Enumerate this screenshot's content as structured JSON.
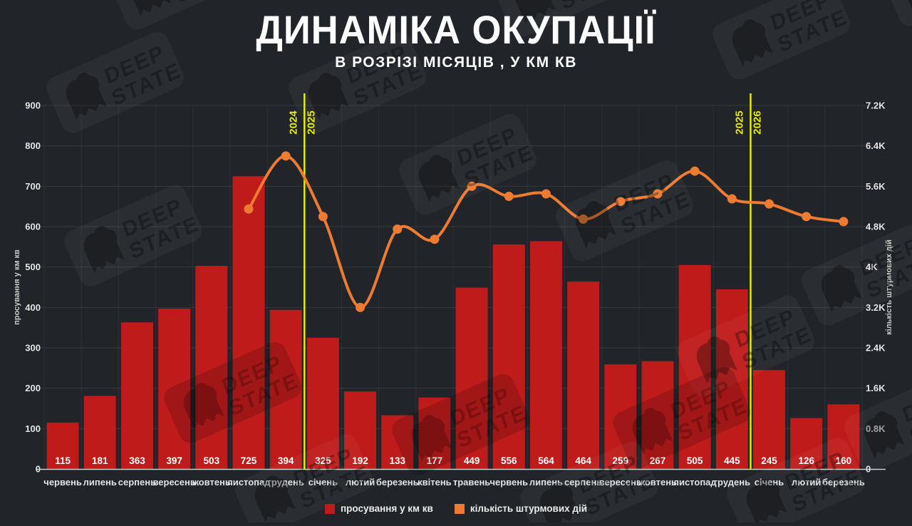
{
  "header": {
    "title": "ДИНАМІКА ОКУПАЦІЇ",
    "subtitle": "В РОЗРІЗІ МІСЯЦІВ , У КМ КВ"
  },
  "watermark": {
    "line1": "DEEP",
    "line2": "STATE"
  },
  "colors": {
    "background": "#212429",
    "bar": "#c01b1b",
    "line": "#ee7b32",
    "year_line": "#e4eb00",
    "axis_text": "#e3e3e3",
    "value_text": "#ffffff",
    "baseline": "#c9cdd1"
  },
  "chart_data": {
    "type": "bar+line combo",
    "title": "ДИНАМІКА ОКУПАЦІЇ",
    "subtitle": "В РОЗРІЗІ МІСЯЦІВ , У КМ КВ",
    "categories": [
      "червень",
      "липень",
      "серпень",
      "вересень",
      "жовтень",
      "листопад",
      "грудень",
      "січень",
      "лютий",
      "березень",
      "квітень",
      "травень",
      "червень",
      "липень",
      "серпень",
      "вересень",
      "жовтень",
      "листопад",
      "грудень",
      "січень",
      "лютий",
      "березень"
    ],
    "series": [
      {
        "name": "просування у км кв",
        "type": "bar",
        "axis": "left",
        "color": "#c01b1b",
        "values": [
          115,
          181,
          363,
          397,
          503,
          725,
          394,
          325,
          192,
          133,
          177,
          449,
          556,
          564,
          464,
          259,
          267,
          505,
          445,
          245,
          126,
          160
        ]
      },
      {
        "name": "кількість штурмових дій",
        "type": "line",
        "axis": "right",
        "color": "#ee7b32",
        "values": [
          null,
          null,
          null,
          null,
          null,
          5150,
          6200,
          5000,
          3200,
          4750,
          4550,
          5600,
          5400,
          5450,
          4950,
          5300,
          5450,
          5900,
          5350,
          5250,
          5000,
          4900
        ]
      }
    ],
    "left_axis": {
      "label": "просування у км кв",
      "min": 0,
      "max": 900,
      "step": 100,
      "ticks": [
        "0",
        "100",
        "200",
        "300",
        "400",
        "500",
        "600",
        "700",
        "800",
        "900"
      ]
    },
    "right_axis": {
      "label": "кількість штурмових дій",
      "min": 0,
      "max": 7200,
      "step": 800,
      "ticks": [
        "0",
        "0.8K",
        "1.6K",
        "2.4K",
        "3.2K",
        "4K",
        "4.8K",
        "5.6K",
        "6.4K",
        "7.2K"
      ]
    },
    "year_separators": [
      {
        "after_index": 6,
        "left_label": "2024",
        "right_label": "2025"
      },
      {
        "after_index": 18,
        "left_label": "2025",
        "right_label": "2026"
      }
    ],
    "legend": [
      {
        "label": "просування у км кв",
        "color": "#c01b1b"
      },
      {
        "label": "кількість штурмових дій",
        "color": "#ee7b32"
      }
    ],
    "grid": true,
    "legend_position": "bottom-center"
  }
}
